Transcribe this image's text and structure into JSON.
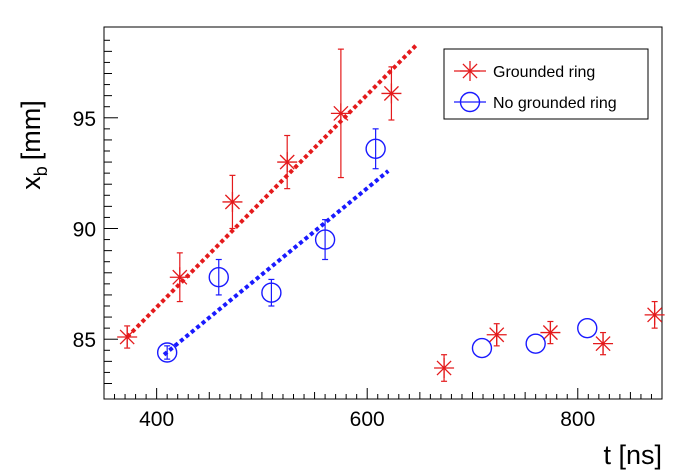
{
  "chart_data": {
    "type": "scatter",
    "title": "",
    "xlabel": "t [ns]",
    "ylabel_main": "x",
    "ylabel_sub": "b",
    "ylabel_unit": "[mm]",
    "xlim": [
      350,
      880
    ],
    "ylim": [
      82.3,
      99.1
    ],
    "x_ticks": [
      400,
      600,
      800
    ],
    "y_ticks": [
      85,
      90,
      95
    ],
    "grid": false,
    "legend_position": "top-right",
    "series": [
      {
        "name": "Grounded ring",
        "marker": "star",
        "color": "#e41a1c",
        "points": [
          {
            "x": 372,
            "y": 85.1,
            "err": 0.5
          },
          {
            "x": 422,
            "y": 87.8,
            "err": 1.1
          },
          {
            "x": 472,
            "y": 91.2,
            "err": 1.2
          },
          {
            "x": 524,
            "y": 93.0,
            "err": 1.2
          },
          {
            "x": 575,
            "y": 95.2,
            "err": 2.9
          },
          {
            "x": 623,
            "y": 96.1,
            "err": 1.2
          },
          {
            "x": 673,
            "y": 83.7,
            "err": 0.6
          },
          {
            "x": 723,
            "y": 85.2,
            "err": 0.5
          },
          {
            "x": 774,
            "y": 85.3,
            "err": 0.5
          },
          {
            "x": 824,
            "y": 84.8,
            "err": 0.5
          },
          {
            "x": 873,
            "y": 86.1,
            "err": 0.6
          }
        ],
        "fit": {
          "x": [
            372,
            647
          ],
          "y": [
            85.1,
            98.3
          ],
          "color": "#e41a1c"
        }
      },
      {
        "name": "No grounded ring",
        "marker": "circle",
        "color": "#1a1aff",
        "points": [
          {
            "x": 410,
            "y": 84.4,
            "err": 0.3
          },
          {
            "x": 459,
            "y": 87.8,
            "err": 0.8
          },
          {
            "x": 509,
            "y": 87.1,
            "err": 0.6
          },
          {
            "x": 560,
            "y": 89.5,
            "err": 0.9
          },
          {
            "x": 608,
            "y": 93.6,
            "err": 0.9
          },
          {
            "x": 709,
            "y": 84.6,
            "err": 0.0
          },
          {
            "x": 760,
            "y": 84.8,
            "err": 0.0
          },
          {
            "x": 809,
            "y": 85.5,
            "err": 0.0
          }
        ],
        "fit": {
          "x": [
            407,
            620
          ],
          "y": [
            84.3,
            92.6
          ],
          "color": "#1a1aff"
        }
      }
    ]
  }
}
